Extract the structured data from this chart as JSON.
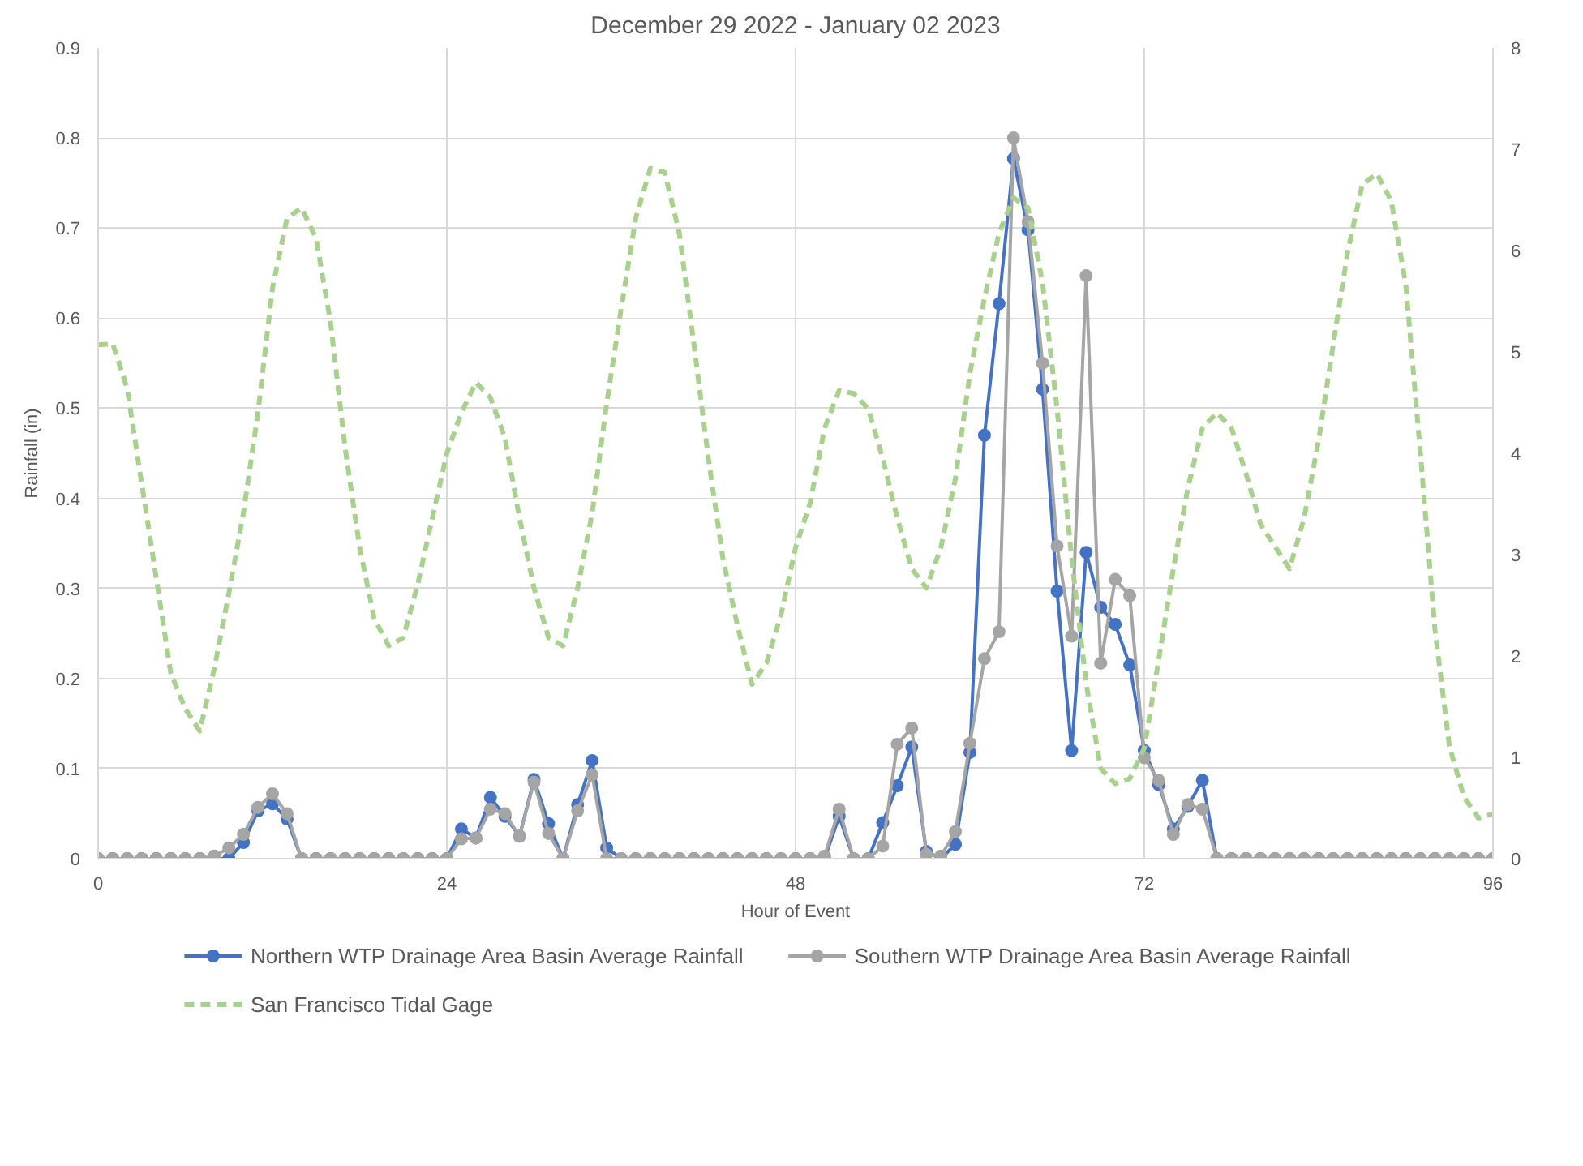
{
  "chart_data": {
    "type": "line",
    "title": "December 29 2022 - January 02 2023",
    "xlabel": "Hour of Event",
    "ylabel": "Rainfall (in)",
    "x": [
      0,
      1,
      2,
      3,
      4,
      5,
      6,
      7,
      8,
      9,
      10,
      11,
      12,
      13,
      14,
      15,
      16,
      17,
      18,
      19,
      20,
      21,
      22,
      23,
      24,
      25,
      26,
      27,
      28,
      29,
      30,
      31,
      32,
      33,
      34,
      35,
      36,
      37,
      38,
      39,
      40,
      41,
      42,
      43,
      44,
      45,
      46,
      47,
      48,
      49,
      50,
      51,
      52,
      53,
      54,
      55,
      56,
      57,
      58,
      59,
      60,
      61,
      62,
      63,
      64,
      65,
      66,
      67,
      68,
      69,
      70,
      71,
      72,
      73,
      74,
      75,
      76,
      77,
      78,
      79,
      80,
      81,
      82,
      83,
      84,
      85,
      86,
      87,
      88,
      89,
      90,
      91,
      92,
      93,
      94,
      95,
      96
    ],
    "series": [
      {
        "name": "Northern WTP Drainage Area Basin Average Rainfall",
        "color": "#4472c4",
        "marker": "circle",
        "line_style": "solid",
        "values": [
          0,
          0,
          0,
          0,
          0,
          0,
          0,
          0,
          0,
          0,
          0.018,
          0.053,
          0.061,
          0.044,
          0,
          0,
          0,
          0,
          0,
          0,
          0,
          0,
          0,
          0,
          0,
          0.033,
          0.023,
          0.068,
          0.047,
          0.025,
          0.088,
          0.039,
          0,
          0.06,
          0.109,
          0.012,
          0,
          0,
          0,
          0,
          0,
          0,
          0,
          0,
          0,
          0,
          0,
          0,
          0,
          0,
          0,
          0.047,
          0,
          0,
          0.04,
          0.081,
          0.124,
          0.008,
          0,
          0.016,
          0.118,
          0.47,
          0.616,
          0.777,
          0.698,
          0.521,
          0.297,
          0.12,
          0.34,
          0.279,
          0.26,
          0.215,
          0.12,
          0.082,
          0.033,
          0.058,
          0.087,
          0,
          0,
          0,
          0,
          0,
          0,
          0,
          0,
          0,
          0,
          0,
          0,
          0,
          0,
          0,
          0,
          0,
          0,
          0,
          0
        ]
      },
      {
        "name": "Southern WTP Drainage Area Basin Average Rainfall",
        "color": "#a5a5a5",
        "marker": "circle",
        "line_style": "solid",
        "values": [
          0,
          0,
          0,
          0,
          0,
          0,
          0,
          0,
          0.003,
          0.012,
          0.027,
          0.057,
          0.072,
          0.05,
          0,
          0,
          0,
          0,
          0,
          0,
          0,
          0,
          0,
          0,
          0,
          0.022,
          0.023,
          0.055,
          0.05,
          0.025,
          0.085,
          0.028,
          0,
          0.053,
          0.093,
          0,
          0,
          0,
          0,
          0,
          0,
          0,
          0,
          0,
          0,
          0,
          0,
          0,
          0,
          0,
          0.003,
          0.055,
          0,
          0,
          0.014,
          0.127,
          0.145,
          0.005,
          0.003,
          0.03,
          0.128,
          0.222,
          0.252,
          0.8,
          0.707,
          0.55,
          0.347,
          0.247,
          0.647,
          0.217,
          0.31,
          0.292,
          0.112,
          0.087,
          0.027,
          0.06,
          0.055,
          0,
          0,
          0,
          0,
          0,
          0,
          0,
          0,
          0,
          0,
          0,
          0,
          0,
          0,
          0,
          0,
          0,
          0,
          0,
          0
        ]
      },
      {
        "name": "San Francisco Tidal Gage",
        "color": "#a9d18e",
        "marker": "none",
        "line_style": "dashed",
        "axis": "y2",
        "values": [
          5.07,
          5.08,
          4.64,
          3.7,
          2.77,
          1.83,
          1.48,
          1.26,
          1.88,
          2.62,
          3.41,
          4.4,
          5.63,
          6.32,
          6.42,
          6.12,
          5.29,
          4.05,
          3.07,
          2.37,
          2.1,
          2.18,
          2.71,
          3.36,
          4.0,
          4.4,
          4.7,
          4.55,
          4.15,
          3.36,
          2.67,
          2.18,
          2.1,
          2.67,
          3.41,
          4.49,
          5.43,
          6.32,
          6.81,
          6.77,
          6.17,
          5.08,
          3.95,
          2.96,
          2.3,
          1.72,
          1.93,
          2.41,
          3.07,
          3.51,
          4.25,
          4.62,
          4.59,
          4.44,
          3.95,
          3.36,
          2.86,
          2.67,
          3.07,
          3.75,
          4.79,
          5.53,
          6.17,
          6.52,
          6.42,
          5.68,
          4.44,
          2.96,
          1.73,
          0.89,
          0.74,
          0.79,
          1.09,
          1.97,
          2.86,
          3.66,
          4.25,
          4.4,
          4.25,
          3.8,
          3.3,
          3.08,
          2.86,
          3.36,
          4.13,
          5.07,
          5.99,
          6.65,
          6.76,
          6.49,
          5.66,
          4.01,
          2.27,
          1.11,
          0.61,
          0.4,
          0.44
        ]
      }
    ],
    "xlim": [
      0,
      96
    ],
    "xticks": [
      0,
      24,
      48,
      72,
      96
    ],
    "ylim": [
      0,
      0.9
    ],
    "yticks": [
      0,
      0.1,
      0.2,
      0.3,
      0.4,
      0.5,
      0.6,
      0.7,
      0.8,
      0.9
    ],
    "y2lim": [
      0,
      8
    ],
    "y2ticks": [
      0,
      1,
      2,
      3,
      4,
      5,
      6,
      7,
      8
    ],
    "grid": true,
    "legend": "bottom"
  }
}
